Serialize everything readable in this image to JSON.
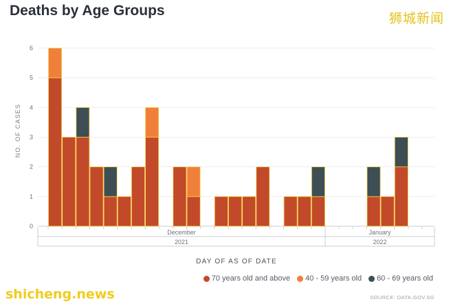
{
  "title": "Deaths by Age Groups",
  "watermark_top": "狮城新闻",
  "watermark_bottom": "shicheng.news",
  "source": "SOURCE: DATA.GOV.SG",
  "colors": {
    "s70plus": "#c24a2a",
    "s40_59": "#f07f3c",
    "s60_69": "#3e4e55"
  },
  "chart_data": {
    "type": "bar",
    "stacked": true,
    "xlabel": "DAY OF AS OF DATE",
    "ylabel": "NO. OF CASES",
    "ylim": [
      0,
      6
    ],
    "yticks": [
      0,
      1,
      2,
      3,
      4,
      5,
      6
    ],
    "grid": true,
    "legend_position": "bottom-right",
    "month_labels": [
      {
        "label": "December",
        "year": "2021"
      },
      {
        "label": "January",
        "year": "2022"
      }
    ],
    "series": [
      {
        "name": "70 years old and above",
        "color": "#c24a2a",
        "values": [
          5,
          3,
          3,
          2,
          1,
          1,
          2,
          3,
          0,
          2,
          1,
          0,
          1,
          1,
          1,
          2,
          0,
          1,
          1,
          1,
          0,
          0,
          0,
          1,
          1,
          2,
          0
        ]
      },
      {
        "name": "40 - 59 years old",
        "color": "#f07f3c",
        "values": [
          1,
          0,
          0,
          0,
          0,
          0,
          0,
          1,
          0,
          0,
          1,
          0,
          0,
          0,
          0,
          0,
          0,
          0,
          0,
          0,
          0,
          0,
          0,
          0,
          0,
          0,
          0
        ]
      },
      {
        "name": "60 - 69 years old",
        "color": "#3e4e55",
        "values": [
          0,
          0,
          1,
          0,
          1,
          0,
          0,
          0,
          0,
          0,
          0,
          0,
          0,
          0,
          0,
          0,
          0,
          0,
          0,
          1,
          0,
          0,
          0,
          1,
          0,
          1,
          0
        ]
      }
    ]
  }
}
